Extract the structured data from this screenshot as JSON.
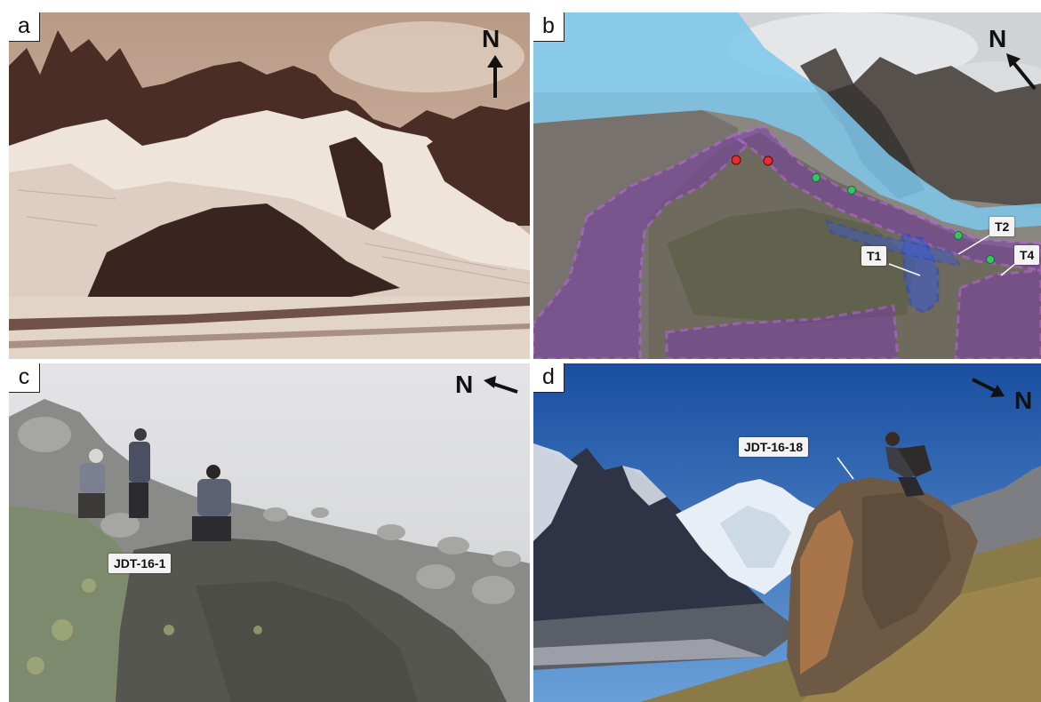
{
  "figure": {
    "panels": [
      {
        "letter": "a",
        "north_label": "N",
        "labels": []
      },
      {
        "letter": "b",
        "north_label": "N",
        "labels": [
          "T1",
          "T2",
          "T4"
        ]
      },
      {
        "letter": "c",
        "north_label": "N",
        "labels": [
          "JDT-16-1"
        ]
      },
      {
        "letter": "d",
        "north_label": "N",
        "labels": [
          "JDT-16-18"
        ]
      }
    ]
  },
  "colors": {
    "ice_overlay": "#7ec8ec",
    "moraine_overlay": "#7a3fa8",
    "moraine_dash": "#c060e8",
    "t1_overlay": "#3a5bd6",
    "marker_red": "#e03030",
    "marker_green": "#3fc060",
    "sepia": "#7a5a48"
  },
  "icons": [
    "north-arrow-icon"
  ]
}
